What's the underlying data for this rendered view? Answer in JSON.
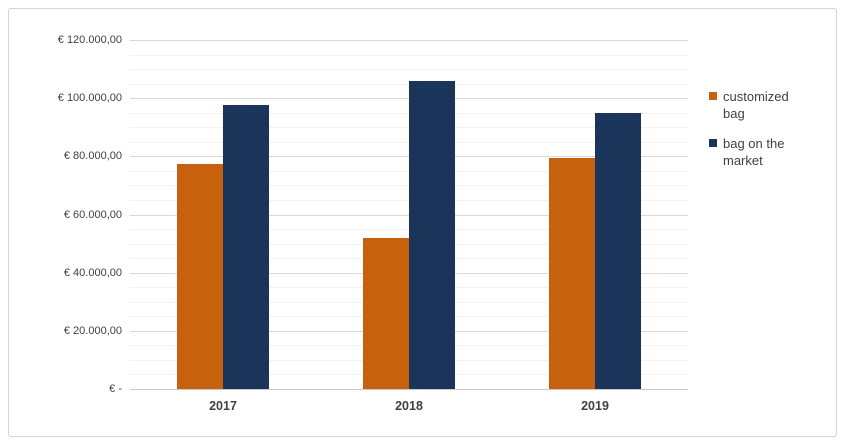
{
  "figure": {
    "background": "#ffffff",
    "border_color": "#d4d4d4"
  },
  "chart_data": {
    "type": "bar",
    "title": "",
    "categories": [
      "2017",
      "2018",
      "2019"
    ],
    "series": [
      {
        "name": "customized bag",
        "color": "#c8610d",
        "values": [
          77500,
          52000,
          79500
        ]
      },
      {
        "name": "bag on the market",
        "color": "#1b3459",
        "values": [
          97500,
          106000,
          95000
        ]
      }
    ],
    "y_axis": {
      "min": 0,
      "max": 120000,
      "major_unit": 20000,
      "minor_unit": 5000,
      "tick_labels_top_to_bottom": [
        "€ 120.000,00",
        "€ 100.000,00",
        "€ 80.000,00",
        "€ 60.000,00",
        "€ 40.000,00",
        "€ 20.000,00",
        "€ -"
      ]
    },
    "x_axis": {
      "tick_labels": [
        "2017",
        "2018",
        "2019"
      ]
    },
    "legend": {
      "position": "right",
      "entries": [
        "customized bag",
        "bag on the market"
      ]
    },
    "grid": {
      "show_major": true,
      "show_minor": true,
      "major_color": "#d9d9d9",
      "minor_color": "#f2f2f2",
      "axis_line_color": "#c9c9c9"
    },
    "text_color": "#404040"
  }
}
